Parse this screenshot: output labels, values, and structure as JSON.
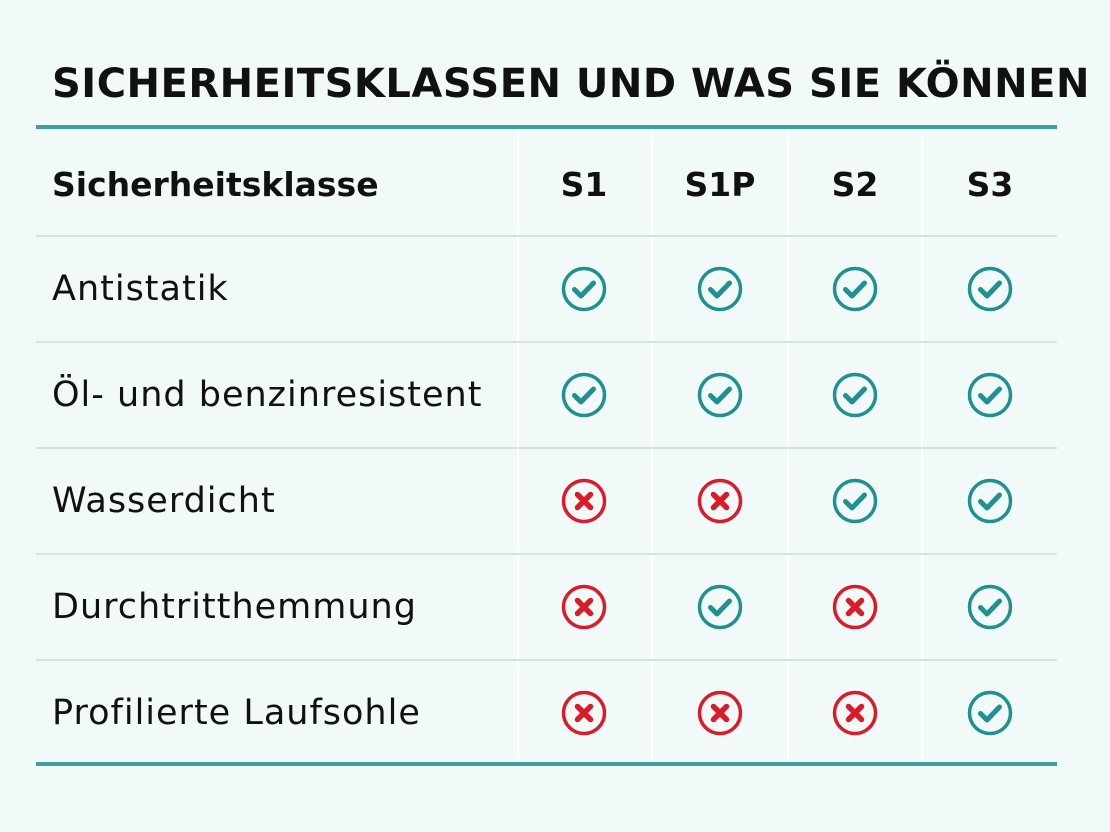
{
  "chart_data": {
    "type": "table",
    "title": "SICHERHEITSKLASSEN UND WAS SIE KÖNNEN",
    "header_label": "Sicherheitsklasse",
    "columns": [
      "S1",
      "S1P",
      "S2",
      "S3"
    ],
    "rows": [
      {
        "label": "Antistatik",
        "values": [
          true,
          true,
          true,
          true
        ]
      },
      {
        "label": "Öl- und benzinresistent",
        "values": [
          true,
          true,
          true,
          true
        ]
      },
      {
        "label": "Wasserdicht",
        "values": [
          false,
          false,
          true,
          true
        ]
      },
      {
        "label": "Durchtritthemmung",
        "values": [
          false,
          true,
          false,
          true
        ]
      },
      {
        "label": "Profilierte Laufsohle",
        "values": [
          false,
          false,
          false,
          true
        ]
      }
    ]
  },
  "colors": {
    "check": "#1f9190",
    "cross": "#d91b2a",
    "rule": "#3f9fa3",
    "background": "#f2f9f9"
  },
  "icons": {
    "yes": "check-circle-icon",
    "no": "x-circle-icon"
  }
}
